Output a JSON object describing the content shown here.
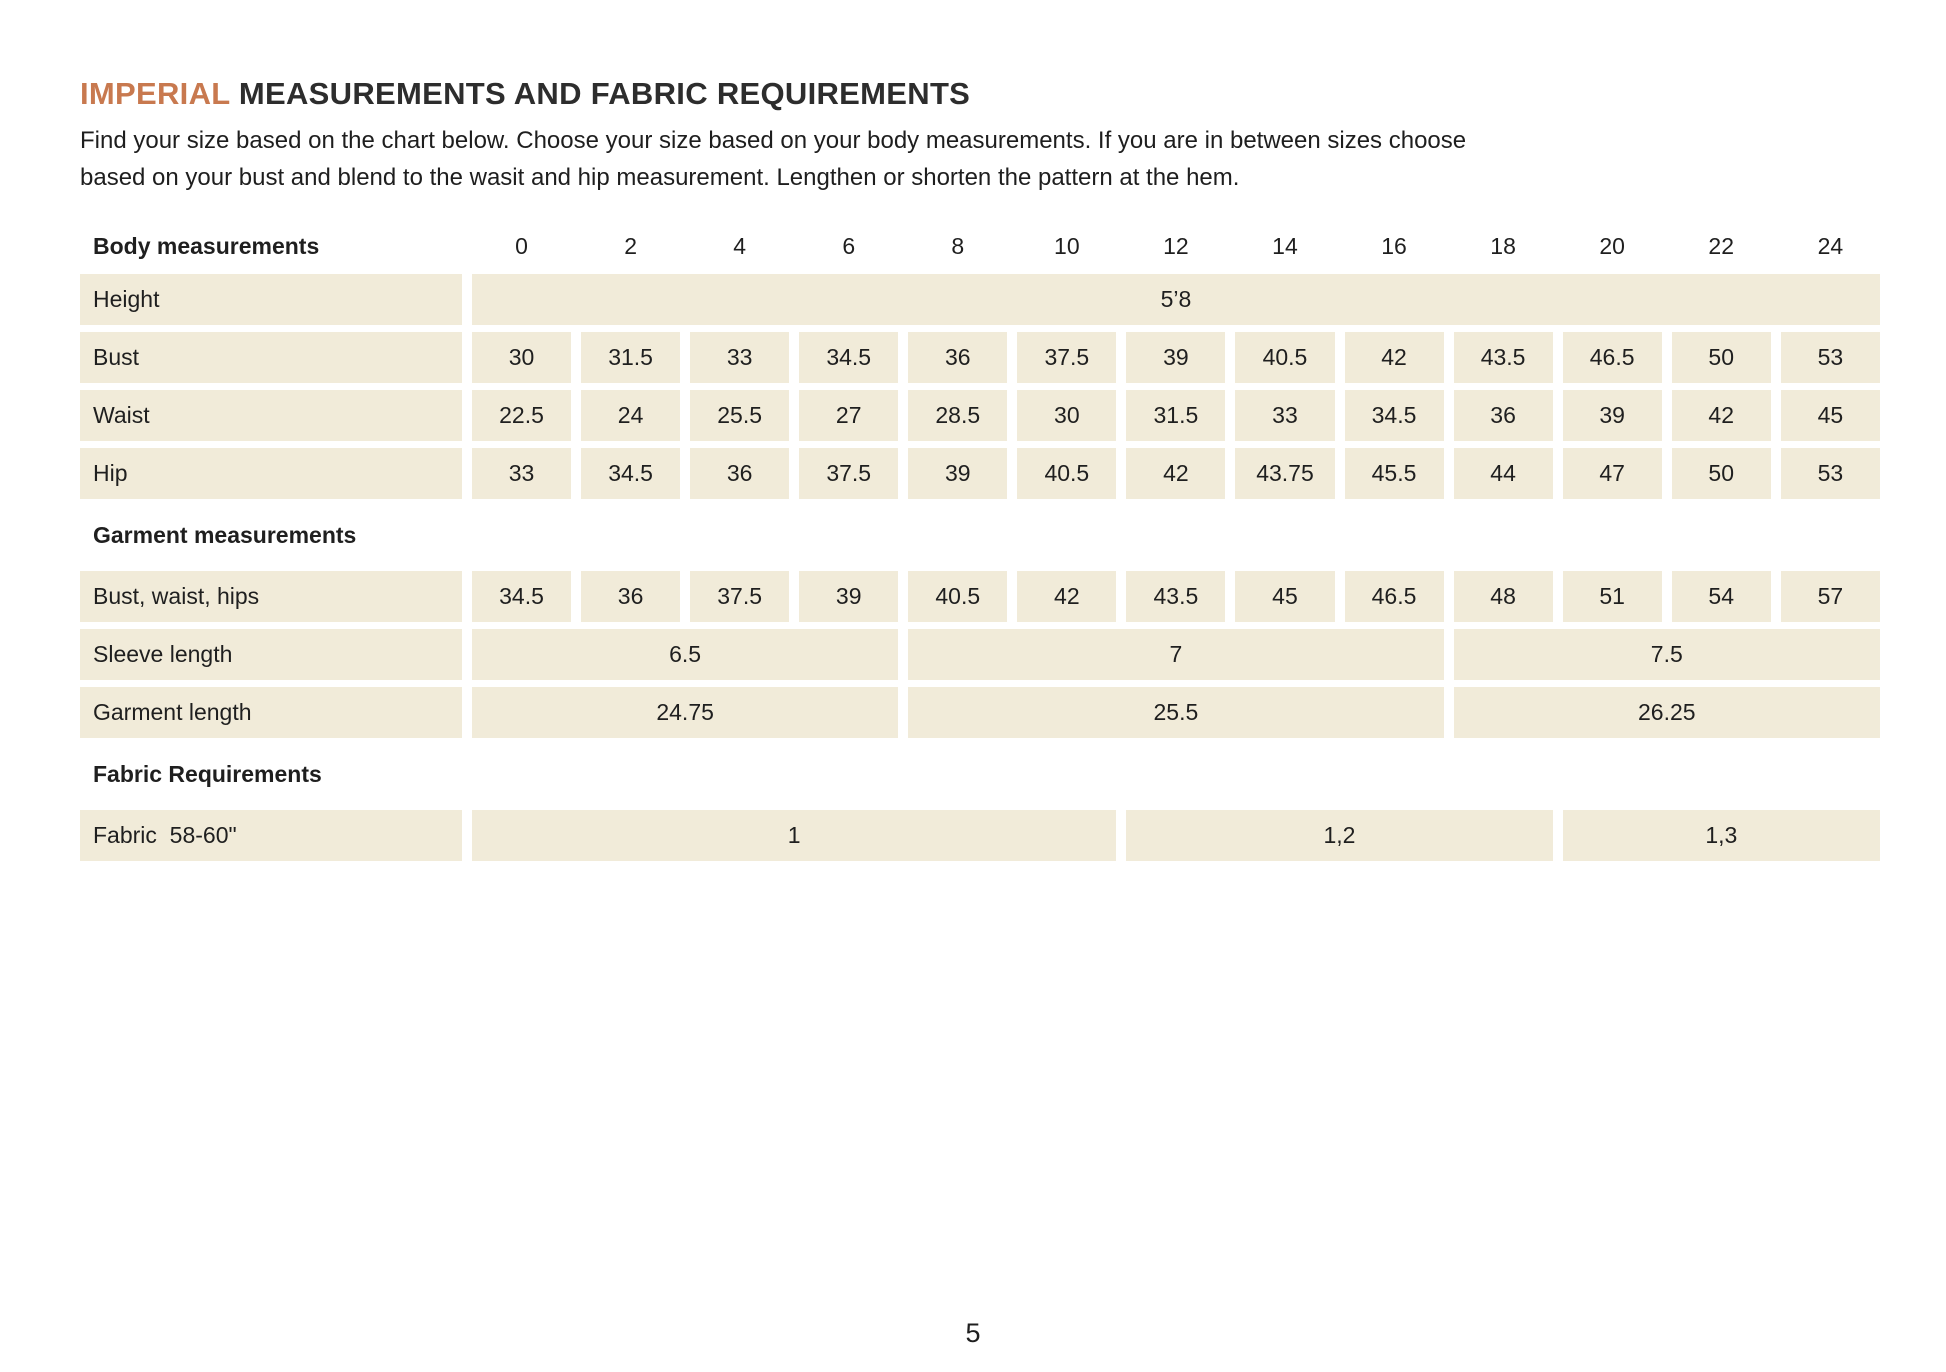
{
  "page": {
    "title": {
      "highlight": "IMPERIAL",
      "rest": " MEASUREMENTS AND FABRIC REQUIREMENTS"
    },
    "intro_lines": [
      "Find your size based on the chart below. Choose your size based on your body measurements. If you are in between sizes choose",
      "based on your bust and blend to the wasit and hip measurement. Lengthen or shorten the pattern at the hem."
    ],
    "page_number": "5"
  },
  "colors": {
    "accent_orange": "#c8794f",
    "cell_beige": "#f1ebd9",
    "ink": "#1f1f1f"
  },
  "size_chart": {
    "header_label": "Body measurements",
    "sizes": [
      "0",
      "2",
      "4",
      "6",
      "8",
      "10",
      "12",
      "14",
      "16",
      "18",
      "20",
      "22",
      "24"
    ],
    "height_row": {
      "label": "Height",
      "value": "5’8"
    },
    "bust_row": {
      "label": "Bust",
      "values": [
        "30",
        "31.5",
        "33",
        "34.5",
        "36",
        "37.5",
        "39",
        "40.5",
        "42",
        "43.5",
        "46.5",
        "50",
        "53"
      ]
    },
    "waist_row": {
      "label": "Waist",
      "values": [
        "22.5",
        "24",
        "25.5",
        "27",
        "28.5",
        "30",
        "31.5",
        "33",
        "34.5",
        "36",
        "39",
        "42",
        "45"
      ]
    },
    "hip_row": {
      "label": "Hip",
      "values": [
        "33",
        "34.5",
        "36",
        "37.5",
        "39",
        "40.5",
        "42",
        "43.75",
        "45.5",
        "44",
        "47",
        "50",
        "53"
      ]
    },
    "garment_section_label": "Garment measurements",
    "bwh_row": {
      "label": "Bust, waist, hips",
      "values": [
        "34.5",
        "36",
        "37.5",
        "39",
        "40.5",
        "42",
        "43.5",
        "45",
        "46.5",
        "48",
        "51",
        "54",
        "57"
      ]
    },
    "sleeve_row": {
      "label": "Sleeve length",
      "groups": [
        "6.5",
        "7",
        "7.5"
      ]
    },
    "length_row": {
      "label": "Garment length",
      "groups": [
        "24.75",
        "25.5",
        "26.25"
      ]
    },
    "fabric_section_label": "Fabric Requirements",
    "fabric_row": {
      "label": "Fabric  58-60\"",
      "groups": [
        "1",
        "1,2",
        "1,3"
      ]
    }
  }
}
